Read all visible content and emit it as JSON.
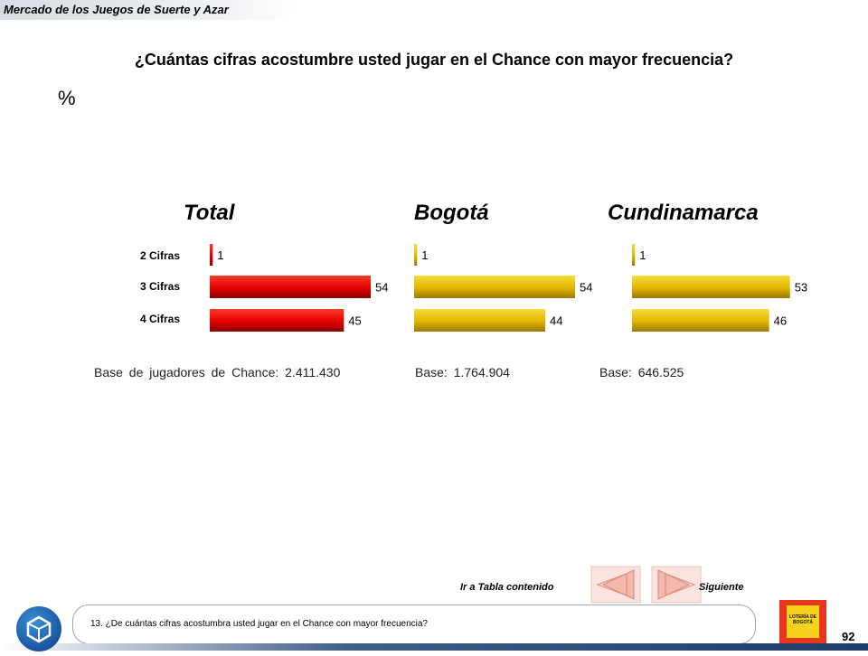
{
  "header": {
    "title": "Mercado de los Juegos de Suerte y Azar"
  },
  "question": "¿Cuántas cifras acostumbre usted jugar en el Chance con mayor frecuencia?",
  "unit_label": "%",
  "chart_data": [
    {
      "type": "bar",
      "title": "Total",
      "categories": [
        "2 Cifras",
        "3 Cifras",
        "4 Cifras"
      ],
      "values": [
        1,
        54,
        45
      ],
      "xlim": [
        0,
        54
      ],
      "color": "#e00000",
      "base": "Base de jugadores de Chance: 2.411.430"
    },
    {
      "type": "bar",
      "title": "Bogotá",
      "categories": [
        "2 Cifras",
        "3 Cifras",
        "4 Cifras"
      ],
      "values": [
        1,
        54,
        44
      ],
      "xlim": [
        0,
        54
      ],
      "color": "#e3b500",
      "base": "Base: 1.764.904"
    },
    {
      "type": "bar",
      "title": "Cundinamarca",
      "categories": [
        "2 Cifras",
        "3 Cifras",
        "4 Cifras"
      ],
      "values": [
        1,
        53,
        46
      ],
      "xlim": [
        0,
        54
      ],
      "color": "#e3b500",
      "base": "Base: 646.525"
    }
  ],
  "nav": {
    "back_label": "Ir a Tabla contenido",
    "next_label": "Siguiente"
  },
  "footnote": "13. ¿De cuántas cifras acostumbra usted jugar en el Chance con mayor frecuencia?",
  "logo": {
    "text": "LOTERÍA DE BOGOTÁ"
  },
  "page_number": "92"
}
